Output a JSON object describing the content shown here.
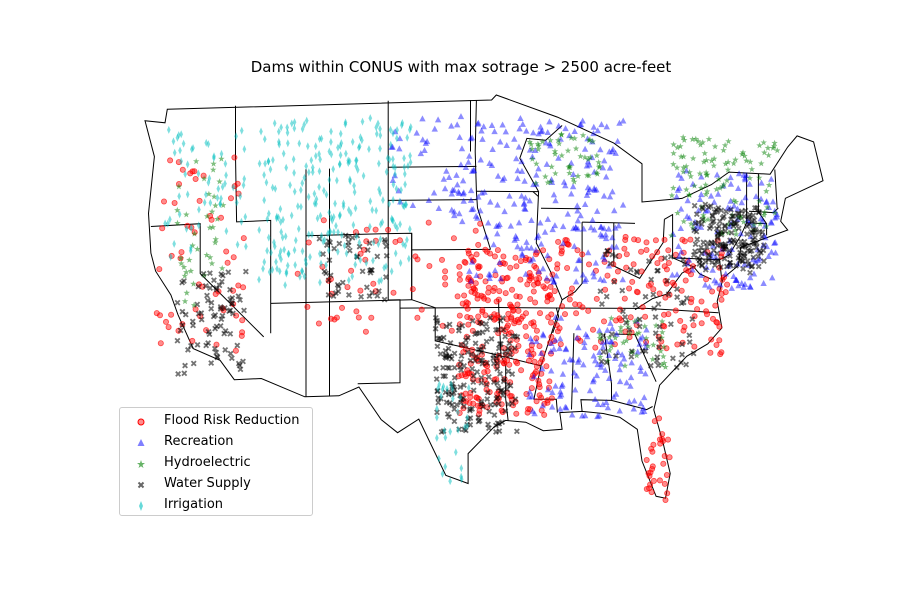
{
  "chart_data": {
    "type": "scatter",
    "title": "Dams within CONUS with max sotrage > 2500 acre-feet",
    "basemap": "contiguous United States with state boundaries",
    "legend_placement": "lower-left",
    "grid": false,
    "axes_visible": false,
    "series": [
      {
        "name": "Flood Risk Reduction",
        "marker": "circle",
        "color": "#ff0000",
        "alpha": 0.45
      },
      {
        "name": "Recreation",
        "marker": "triangle",
        "color": "#0000ff",
        "alpha": 0.45
      },
      {
        "name": "Hydroelectric",
        "marker": "star",
        "color": "#008000",
        "alpha": 0.5
      },
      {
        "name": "Water Supply",
        "marker": "x",
        "color": "#000000",
        "alpha": 0.55
      },
      {
        "name": "Irrigation",
        "marker": "thin-diamond",
        "color": "#00bfbf",
        "alpha": 0.5
      }
    ],
    "regions": [
      {
        "series": "Flood Risk Reduction",
        "lon": [
          -98,
          -90
        ],
        "lat": [
          30,
          40
        ],
        "n": 280
      },
      {
        "series": "Flood Risk Reduction",
        "lon": [
          -90,
          -75
        ],
        "lat": [
          34,
          41
        ],
        "n": 160
      },
      {
        "series": "Flood Risk Reduction",
        "lon": [
          -124,
          -116
        ],
        "lat": [
          34,
          46
        ],
        "n": 60
      },
      {
        "series": "Flood Risk Reduction",
        "lon": [
          -82,
          -80
        ],
        "lat": [
          25,
          30
        ],
        "n": 30
      },
      {
        "series": "Flood Risk Reduction",
        "lon": [
          -112,
          -96
        ],
        "lat": [
          35,
          42
        ],
        "n": 60
      },
      {
        "series": "Recreation",
        "lon": [
          -98,
          -84
        ],
        "lat": [
          38,
          48
        ],
        "n": 230
      },
      {
        "series": "Recreation",
        "lon": [
          -92,
          -82
        ],
        "lat": [
          30,
          36
        ],
        "n": 120
      },
      {
        "series": "Recreation",
        "lon": [
          -80,
          -70
        ],
        "lat": [
          38,
          45
        ],
        "n": 140
      },
      {
        "series": "Recreation",
        "lon": [
          -104,
          -96
        ],
        "lat": [
          42,
          48
        ],
        "n": 50
      },
      {
        "series": "Hydroelectric",
        "lon": [
          -80,
          -68
        ],
        "lat": [
          41,
          47
        ],
        "n": 140
      },
      {
        "series": "Hydroelectric",
        "lon": [
          -92,
          -86
        ],
        "lat": [
          44,
          47
        ],
        "n": 50
      },
      {
        "series": "Hydroelectric",
        "lon": [
          -122,
          -118
        ],
        "lat": [
          37,
          46
        ],
        "n": 40
      },
      {
        "series": "Hydroelectric",
        "lon": [
          -86,
          -80
        ],
        "lat": [
          33,
          36
        ],
        "n": 40
      },
      {
        "series": "Water Supply",
        "lon": [
          -78,
          -72
        ],
        "lat": [
          39,
          43
        ],
        "n": 170
      },
      {
        "series": "Water Supply",
        "lon": [
          -100,
          -93
        ],
        "lat": [
          29,
          36
        ],
        "n": 190
      },
      {
        "series": "Water Supply",
        "lon": [
          -122,
          -116
        ],
        "lat": [
          33,
          39
        ],
        "n": 80
      },
      {
        "series": "Water Supply",
        "lon": [
          -86,
          -78
        ],
        "lat": [
          33,
          40
        ],
        "n": 70
      },
      {
        "series": "Water Supply",
        "lon": [
          -110,
          -104
        ],
        "lat": [
          37,
          41
        ],
        "n": 50
      },
      {
        "series": "Irrigation",
        "lon": [
          -115,
          -102
        ],
        "lat": [
          38,
          48
        ],
        "n": 260
      },
      {
        "series": "Irrigation",
        "lon": [
          -123,
          -116
        ],
        "lat": [
          40,
          48
        ],
        "n": 60
      },
      {
        "series": "Irrigation",
        "lon": [
          -100,
          -97
        ],
        "lat": [
          26,
          32
        ],
        "n": 30
      }
    ]
  }
}
